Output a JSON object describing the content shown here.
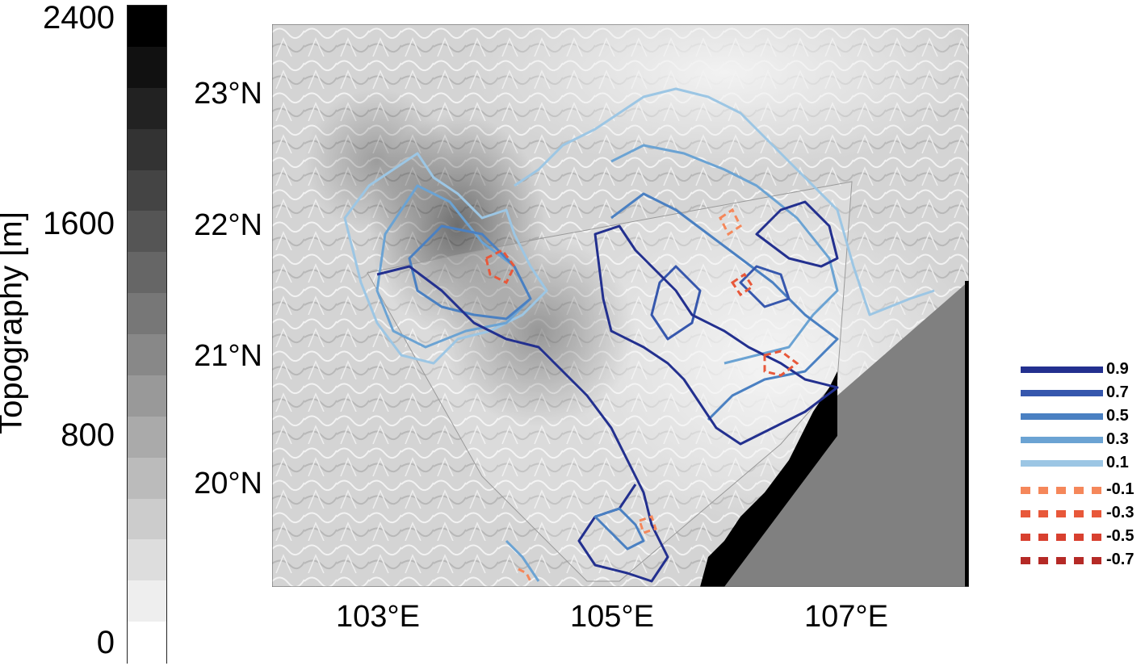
{
  "colorbar": {
    "label": "Topography [m]",
    "ticks": [
      {
        "value": 2400,
        "label": "2400"
      },
      {
        "value": 1600,
        "label": "1600"
      },
      {
        "value": 800,
        "label": "800"
      },
      {
        "value": 0,
        "label": "0"
      }
    ],
    "range": [
      0,
      2400
    ],
    "levels": 16,
    "colors": {
      "low": "#ffffff",
      "high": "#000000"
    }
  },
  "map": {
    "lat_labels": [
      "23°N",
      "22°N",
      "21°N",
      "20°N"
    ],
    "lon_labels": [
      "103°E",
      "105°E",
      "107°E"
    ],
    "lon_range": [
      102.2,
      108.0
    ],
    "lat_range": [
      19.2,
      23.5
    ],
    "sea_color": "#808080",
    "coast_color": "#000000"
  },
  "legend": [
    {
      "label": "0.9",
      "color": "#23308f",
      "style": "solid"
    },
    {
      "label": "0.7",
      "color": "#3657ad",
      "style": "solid"
    },
    {
      "label": "0.5",
      "color": "#4a80c2",
      "style": "solid"
    },
    {
      "label": "0.3",
      "color": "#6ba3d3",
      "style": "solid"
    },
    {
      "label": "0.1",
      "color": "#9cc6e4",
      "style": "solid"
    },
    {
      "label": "-0.1",
      "color": "#f5875a",
      "style": "dashed"
    },
    {
      "label": "-0.3",
      "color": "#e8583a",
      "style": "dashed"
    },
    {
      "label": "-0.5",
      "color": "#d8402f",
      "style": "dashed"
    },
    {
      "label": "-0.7",
      "color": "#b52a26",
      "style": "dashed"
    }
  ]
}
